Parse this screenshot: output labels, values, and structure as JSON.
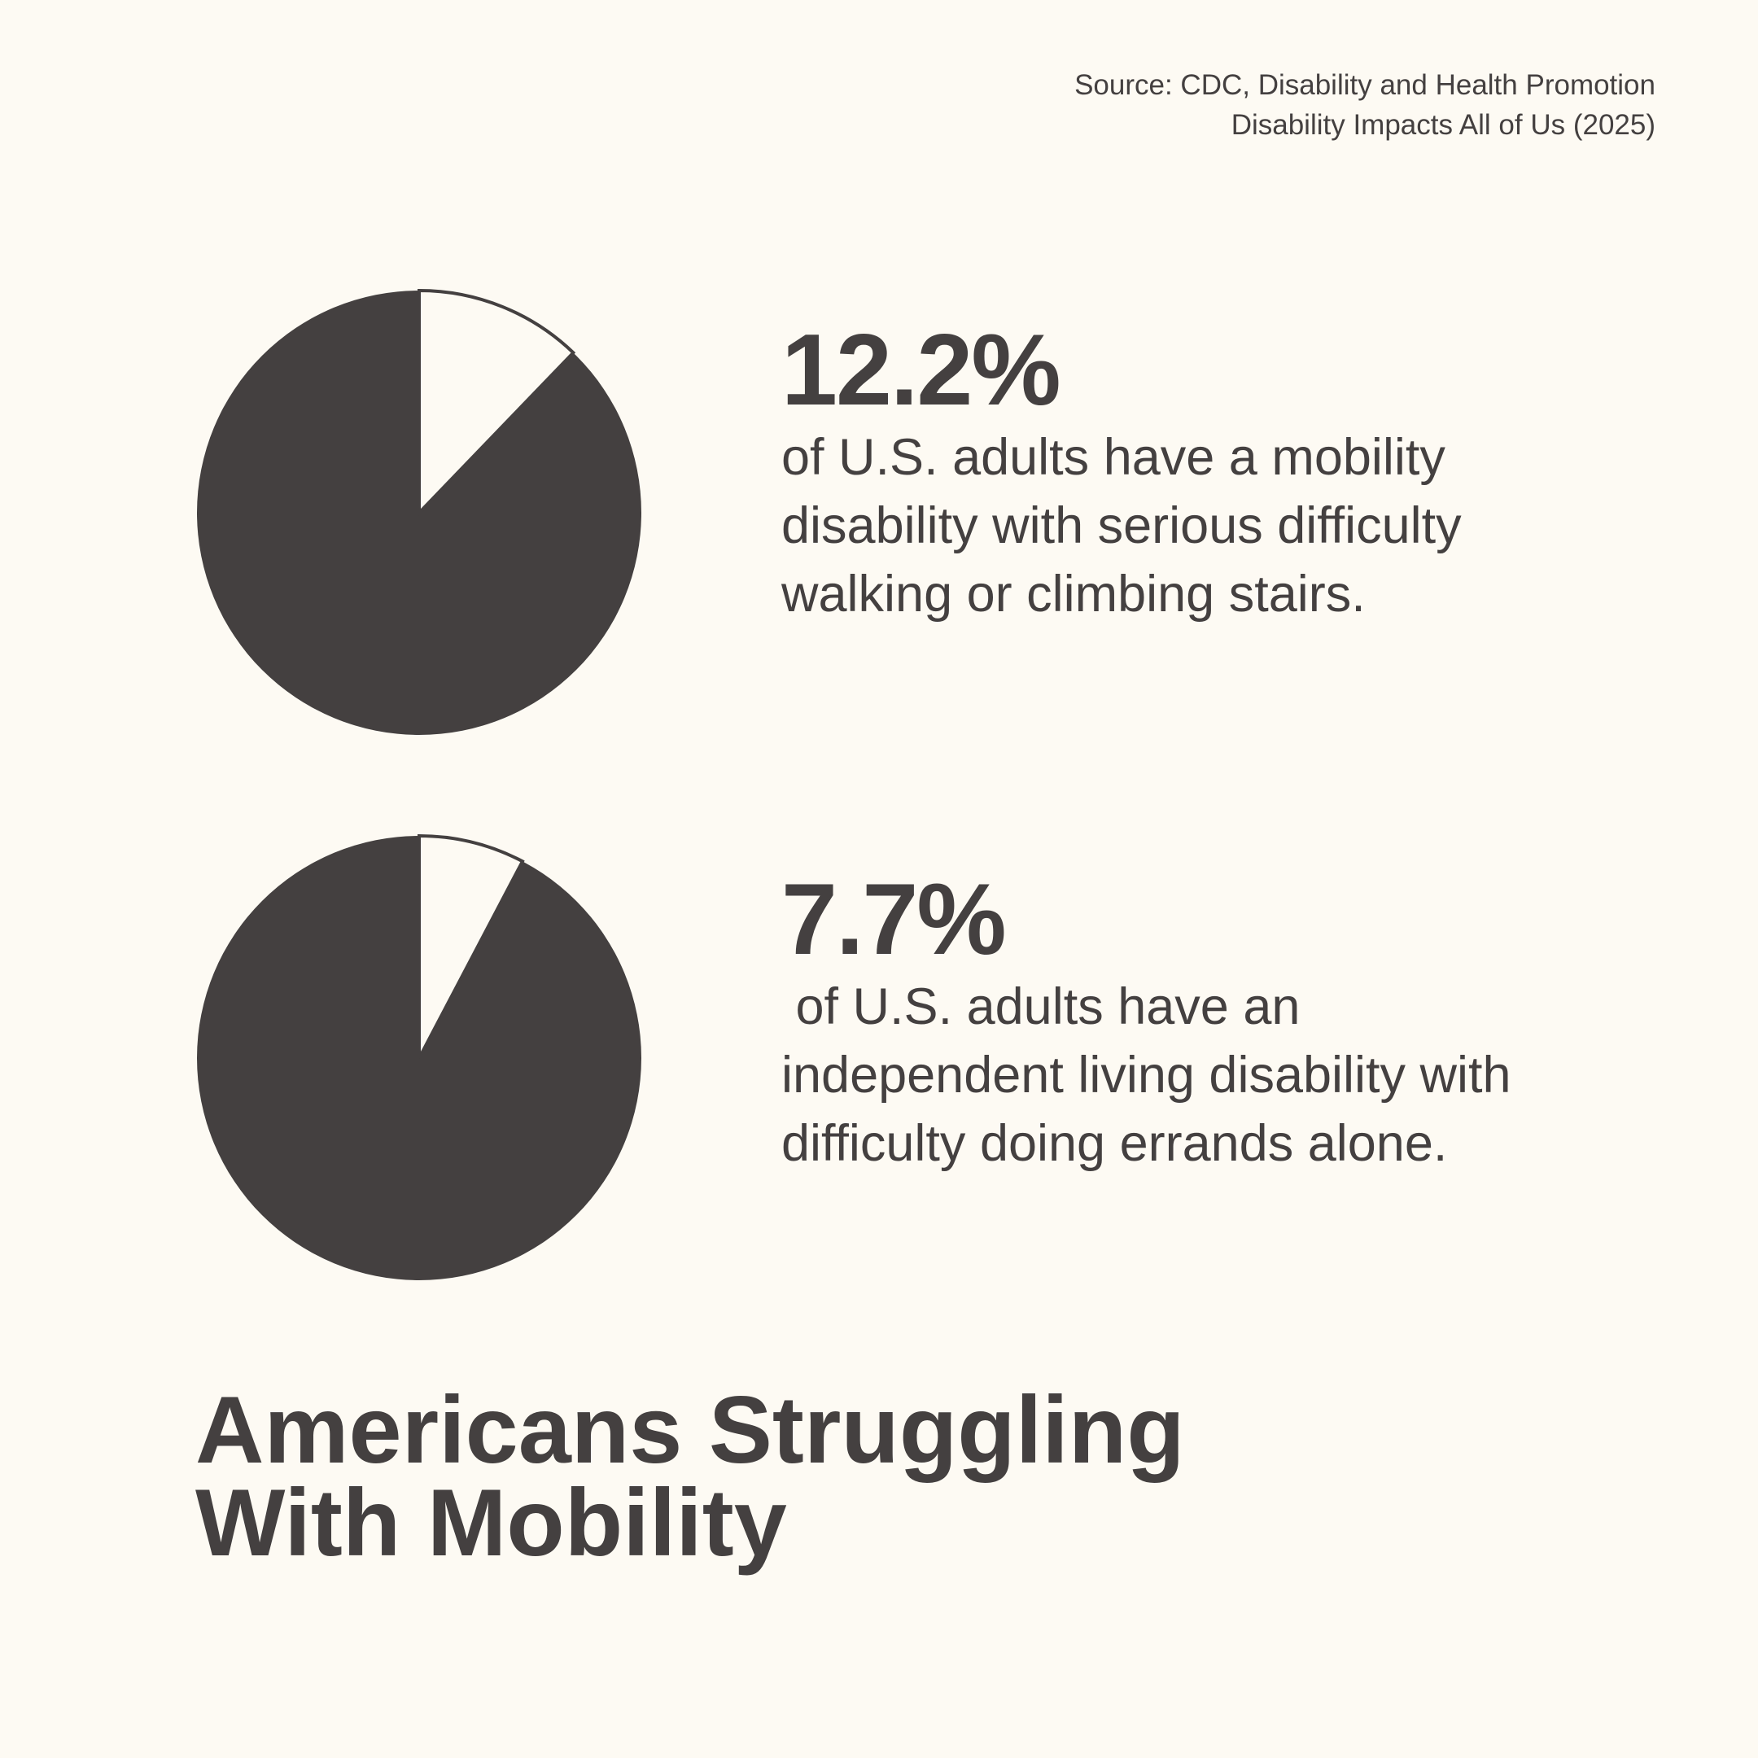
{
  "source": {
    "line1": "Source: CDC, Disability and Health Promotion",
    "line2": "Disability Impacts All of Us (2025)"
  },
  "colors": {
    "background": "#fdfaf3",
    "ink": "#444040",
    "slice": "#fdfaf3"
  },
  "chart_data": [
    {
      "type": "pie",
      "slices": [
        {
          "value": 12.2,
          "highlighted": true
        },
        {
          "value": 87.8,
          "highlighted": false
        }
      ],
      "label": "12.2%",
      "description": "of U.S. adults have a mobility disability with serious difficulty walking or climbing stairs."
    },
    {
      "type": "pie",
      "slices": [
        {
          "value": 7.7,
          "highlighted": true
        },
        {
          "value": 92.3,
          "highlighted": false
        }
      ],
      "label": "7.7%",
      "description": " of U.S. adults have an independent living disability with difficulty doing errands alone."
    }
  ],
  "title": {
    "line1": "Americans Struggling",
    "line2": "With Mobility"
  }
}
